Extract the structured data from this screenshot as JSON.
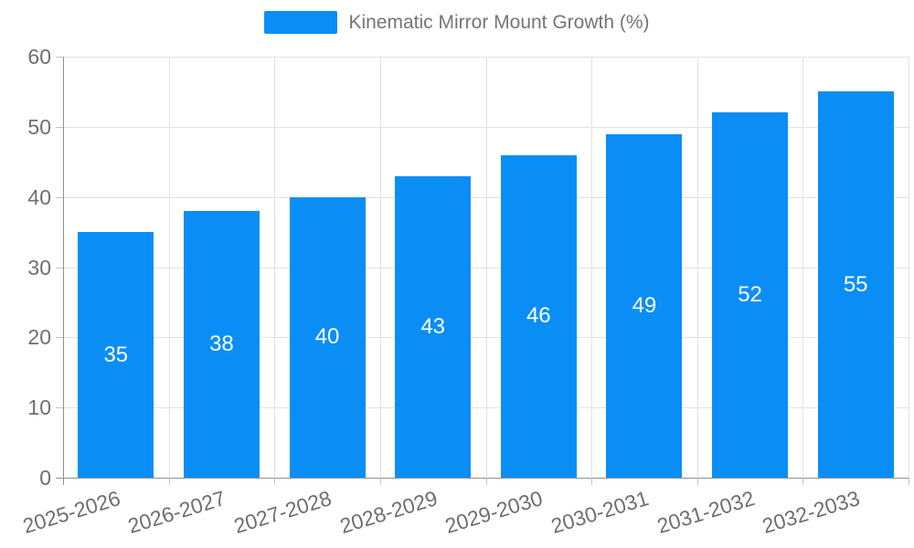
{
  "legend": {
    "label": "Kinematic Mirror Mount Growth (%)"
  },
  "chart_data": {
    "type": "bar",
    "title": "Kinematic Mirror Mount Growth (%)",
    "categories": [
      "2025-2026",
      "2026-2027",
      "2027-2028",
      "2028-2029",
      "2029-2030",
      "2030-2031",
      "2031-2032",
      "2032-2033"
    ],
    "values": [
      35,
      38,
      40,
      43,
      46,
      49,
      52,
      55
    ],
    "series": [
      {
        "name": "Kinematic Mirror Mount Growth (%)",
        "values": [
          35,
          38,
          40,
          43,
          46,
          49,
          52,
          55
        ]
      }
    ],
    "xlabel": "",
    "ylabel": "",
    "ylim": [
      0,
      60
    ],
    "y_ticks": [
      0,
      10,
      20,
      30,
      40,
      50,
      60
    ],
    "grid": "horizontal-and-vertical",
    "legend_position": "top-center",
    "bar_labels_position": "inside-center",
    "x_label_rotation_deg": 17,
    "colors": {
      "bar": "#0a8ef6",
      "bar_label": "#ffffff",
      "axis_text": "#6f6f6f",
      "legend_text": "#757575",
      "grid_line": "#e2e2e2",
      "axis_line": "#8f8f8f",
      "tick_mark": "#c4c4c4",
      "background": "#ffffff"
    }
  }
}
